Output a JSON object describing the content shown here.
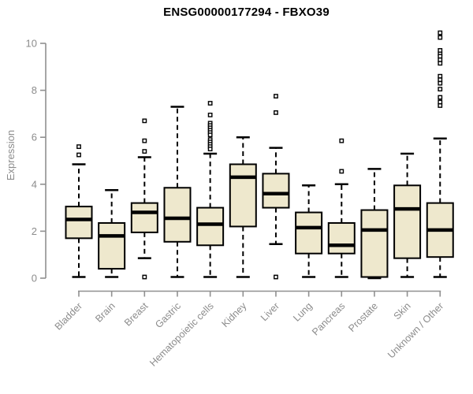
{
  "chart_data": {
    "type": "boxplot",
    "title": "ENSG00000177294 - FBXO39",
    "ylabel": "Expression",
    "xlabel": "",
    "ylim": [
      0,
      10
    ],
    "yticks": [
      0,
      2,
      4,
      6,
      8,
      10
    ],
    "grid": false,
    "legend": false,
    "colors": {
      "box_fill": "#EEE8CD",
      "box_border": "#000000",
      "median": "#000000",
      "whisker": "#000000",
      "outlier_stroke": "#000000",
      "outlier_fill": "#ffffff",
      "axis": "#909090",
      "tick_label": "#8C8C8C",
      "title": "#000000",
      "background": "#ffffff"
    },
    "categories": [
      "Bladder",
      "Brain",
      "Breast",
      "Gastric",
      "Hematopoietic cells",
      "Kidney",
      "Liver",
      "Lung",
      "Pancreas",
      "Prostate",
      "Skin",
      "Unknown / Other"
    ],
    "series": [
      {
        "category": "Bladder",
        "whislo": 0.05,
        "q1": 1.7,
        "median": 2.5,
        "q3": 3.05,
        "whishi": 4.85,
        "fliers": [
          5.6,
          5.25
        ]
      },
      {
        "category": "Brain",
        "whislo": 0.05,
        "q1": 0.4,
        "median": 1.8,
        "q3": 2.35,
        "whishi": 3.75,
        "fliers": []
      },
      {
        "category": "Breast",
        "whislo": 0.85,
        "q1": 1.95,
        "median": 2.8,
        "q3": 3.2,
        "whishi": 5.15,
        "fliers": [
          6.7,
          5.85,
          5.4,
          0.05
        ]
      },
      {
        "category": "Gastric",
        "whislo": 0.05,
        "q1": 1.55,
        "median": 2.55,
        "q3": 3.85,
        "whishi": 7.3,
        "fliers": []
      },
      {
        "category": "Hematopoietic cells",
        "whislo": 0.05,
        "q1": 1.4,
        "median": 2.3,
        "q3": 3.0,
        "whishi": 5.3,
        "fliers": [
          7.45,
          6.95,
          6.6,
          6.5,
          6.4,
          6.3,
          6.2,
          6.1,
          5.9,
          5.8,
          5.7,
          5.6,
          5.5
        ]
      },
      {
        "category": "Kidney",
        "whislo": 0.05,
        "q1": 2.2,
        "median": 4.3,
        "q3": 4.85,
        "whishi": 6.0,
        "fliers": []
      },
      {
        "category": "Liver",
        "whislo": 1.45,
        "q1": 3.0,
        "median": 3.6,
        "q3": 4.45,
        "whishi": 5.55,
        "fliers": [
          7.75,
          7.05,
          0.05
        ]
      },
      {
        "category": "Lung",
        "whislo": 0.05,
        "q1": 1.05,
        "median": 2.15,
        "q3": 2.8,
        "whishi": 3.95,
        "fliers": []
      },
      {
        "category": "Pancreas",
        "whislo": 0.05,
        "q1": 1.05,
        "median": 1.4,
        "q3": 2.35,
        "whishi": 4.0,
        "fliers": [
          5.85,
          4.55
        ]
      },
      {
        "category": "Prostate",
        "whislo": 0.0,
        "q1": 0.05,
        "median": 2.05,
        "q3": 2.9,
        "whishi": 4.65,
        "fliers": []
      },
      {
        "category": "Skin",
        "whislo": 0.05,
        "q1": 0.85,
        "median": 2.95,
        "q3": 3.95,
        "whishi": 5.3,
        "fliers": []
      },
      {
        "category": "Unknown / Other",
        "whislo": 0.05,
        "q1": 0.9,
        "median": 2.05,
        "q3": 3.2,
        "whishi": 5.95,
        "fliers": [
          10.45,
          10.25,
          9.7,
          9.55,
          9.45,
          9.3,
          9.15,
          8.6,
          8.45,
          8.3,
          8.05,
          7.7,
          7.5,
          7.35
        ]
      }
    ]
  }
}
